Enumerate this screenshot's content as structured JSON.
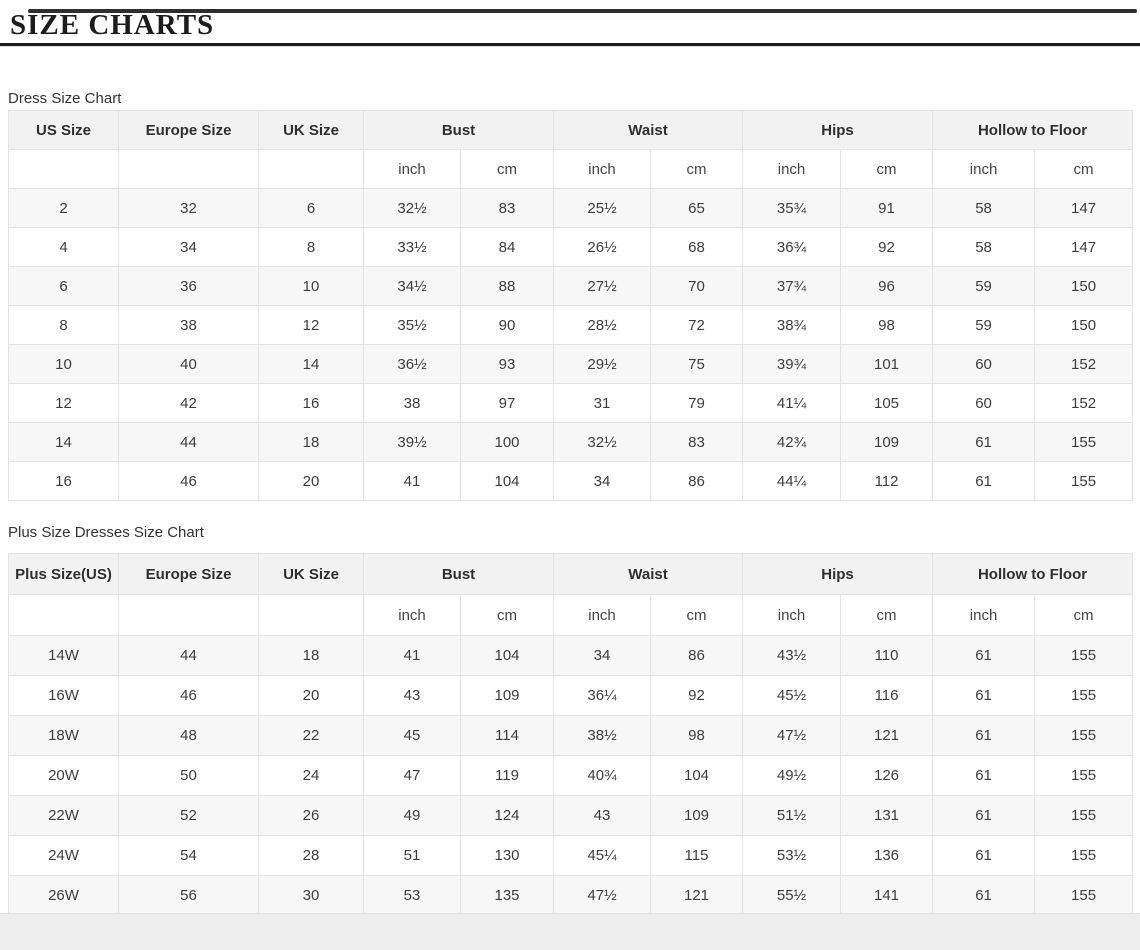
{
  "page": {
    "title": "SIZE CHARTS"
  },
  "dress_chart": {
    "label": "Dress Size Chart",
    "columns": [
      "US Size",
      "Europe Size",
      "UK Size",
      "Bust",
      "Waist",
      "Hips",
      "Hollow to Floor"
    ],
    "unit_row": [
      "inch",
      "cm",
      "inch",
      "cm",
      "inch",
      "cm",
      "inch",
      "cm"
    ],
    "rows": [
      [
        "2",
        "32",
        "6",
        "32½",
        "83",
        "25½",
        "65",
        "35¾",
        "91",
        "58",
        "147"
      ],
      [
        "4",
        "34",
        "8",
        "33½",
        "84",
        "26½",
        "68",
        "36¾",
        "92",
        "58",
        "147"
      ],
      [
        "6",
        "36",
        "10",
        "34½",
        "88",
        "27½",
        "70",
        "37¾",
        "96",
        "59",
        "150"
      ],
      [
        "8",
        "38",
        "12",
        "35½",
        "90",
        "28½",
        "72",
        "38¾",
        "98",
        "59",
        "150"
      ],
      [
        "10",
        "40",
        "14",
        "36½",
        "93",
        "29½",
        "75",
        "39¾",
        "101",
        "60",
        "152"
      ],
      [
        "12",
        "42",
        "16",
        "38",
        "97",
        "31",
        "79",
        "41¼",
        "105",
        "60",
        "152"
      ],
      [
        "14",
        "44",
        "18",
        "39½",
        "100",
        "32½",
        "83",
        "42¾",
        "109",
        "61",
        "155"
      ],
      [
        "16",
        "46",
        "20",
        "41",
        "104",
        "34",
        "86",
        "44¼",
        "112",
        "61",
        "155"
      ]
    ]
  },
  "plus_chart": {
    "label": "Plus Size Dresses Size Chart",
    "columns": [
      "Plus Size(US)",
      "Europe Size",
      "UK Size",
      "Bust",
      "Waist",
      "Hips",
      "Hollow to Floor"
    ],
    "unit_row": [
      "inch",
      "cm",
      "inch",
      "cm",
      "inch",
      "cm",
      "inch",
      "cm"
    ],
    "rows": [
      [
        "14W",
        "44",
        "18",
        "41",
        "104",
        "34",
        "86",
        "43½",
        "110",
        "61",
        "155"
      ],
      [
        "16W",
        "46",
        "20",
        "43",
        "109",
        "36¼",
        "92",
        "45½",
        "116",
        "61",
        "155"
      ],
      [
        "18W",
        "48",
        "22",
        "45",
        "114",
        "38½",
        "98",
        "47½",
        "121",
        "61",
        "155"
      ],
      [
        "20W",
        "50",
        "24",
        "47",
        "119",
        "40¾",
        "104",
        "49½",
        "126",
        "61",
        "155"
      ],
      [
        "22W",
        "52",
        "26",
        "49",
        "124",
        "43",
        "109",
        "51½",
        "131",
        "61",
        "155"
      ],
      [
        "24W",
        "54",
        "28",
        "51",
        "130",
        "45¼",
        "115",
        "53½",
        "136",
        "61",
        "155"
      ],
      [
        "26W",
        "56",
        "30",
        "53",
        "135",
        "47½",
        "121",
        "55½",
        "141",
        "61",
        "155"
      ]
    ]
  },
  "colors": {
    "rule": "#1d1d1d",
    "header_bg": "#f2f2f2",
    "stripe_bg": "#f7f7f7",
    "border": "#e3e3e3",
    "text": "#3d3d3d",
    "footer_bg": "#ededed"
  }
}
